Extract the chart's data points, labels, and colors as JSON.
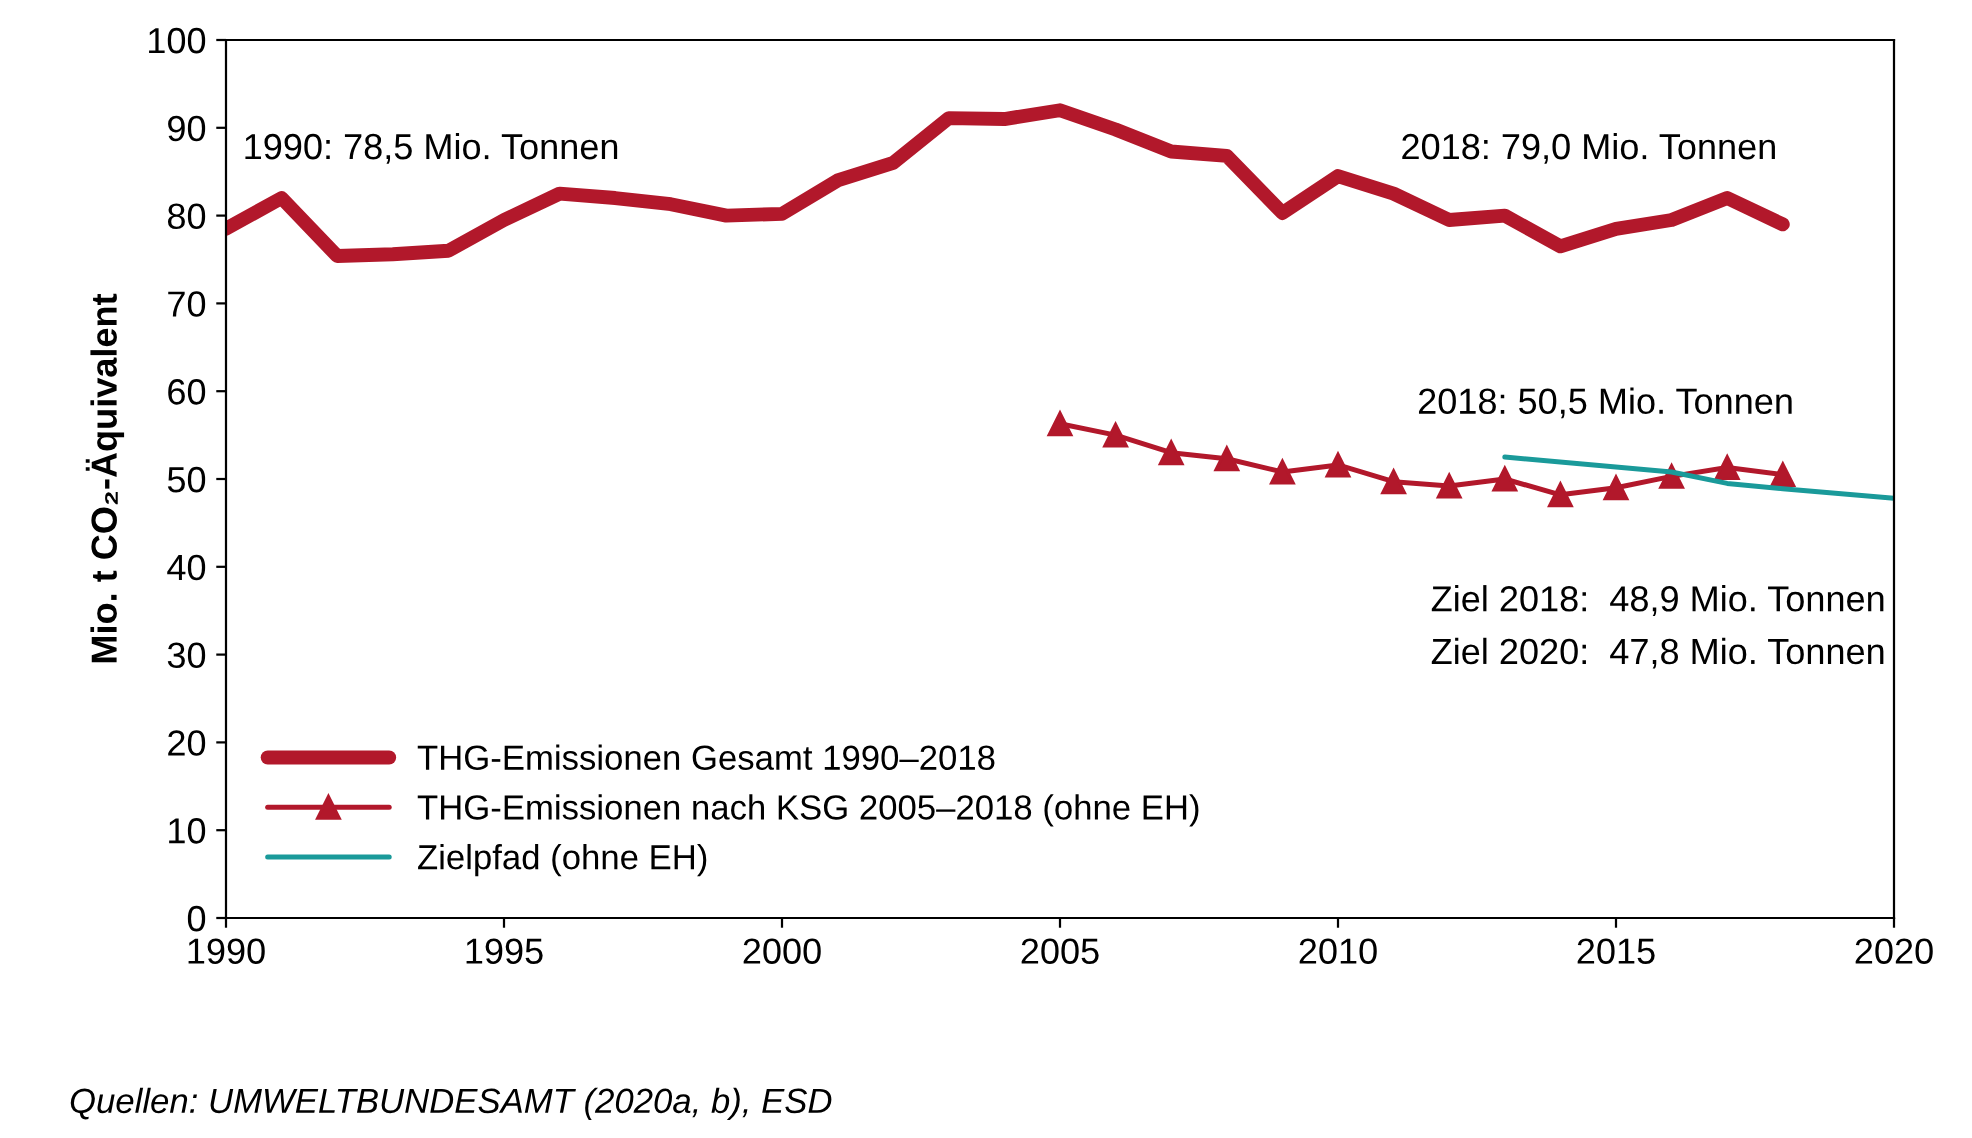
{
  "chart_data": {
    "type": "line",
    "ylabel": "Mio. t CO₂-Äquivalent",
    "xlim": [
      1990,
      2020
    ],
    "xticks": [
      1990,
      1995,
      2000,
      2005,
      2010,
      2015,
      2020
    ],
    "ylim": [
      0,
      100
    ],
    "yticks": [
      0,
      10,
      20,
      30,
      40,
      50,
      60,
      70,
      80,
      90,
      100
    ],
    "grid": false,
    "legend": "bottom left",
    "series": [
      {
        "name": "THG-Emissionen Gesamt 1990–2018",
        "color": "#b2182b",
        "marker": "none",
        "x": [
          1990,
          1991,
          1992,
          1993,
          1994,
          1995,
          1996,
          1997,
          1998,
          1999,
          2000,
          2001,
          2002,
          2003,
          2004,
          2005,
          2006,
          2007,
          2008,
          2009,
          2010,
          2011,
          2012,
          2013,
          2014,
          2015,
          2016,
          2017,
          2018
        ],
        "values": [
          78.5,
          82,
          75.4,
          75.6,
          76,
          79.5,
          82.5,
          82,
          81.3,
          80,
          80.2,
          84,
          86,
          91.1,
          91,
          92,
          89.8,
          87.3,
          86.8,
          80.3,
          84.5,
          82.5,
          79.5,
          80,
          76.5,
          78.5,
          79.5,
          82,
          79.0
        ]
      },
      {
        "name": "THG-Emissionen nach KSG 2005–2018 (ohne EH)",
        "color": "#b2182b",
        "marker": "triangle",
        "x": [
          2005,
          2006,
          2007,
          2008,
          2009,
          2010,
          2011,
          2012,
          2013,
          2014,
          2015,
          2016,
          2017,
          2018
        ],
        "values": [
          56.3,
          55,
          53,
          52.3,
          50.8,
          51.6,
          49.7,
          49.2,
          50,
          48.2,
          49,
          50.3,
          51.3,
          50.5
        ]
      },
      {
        "name": "Zielpfad (ohne EH)",
        "color": "#1a9a9a",
        "marker": "none",
        "x": [
          2013,
          2016,
          2017,
          2018,
          2020
        ],
        "values": [
          52.5,
          50.8,
          49.5,
          48.9,
          47.8
        ]
      }
    ],
    "annotations": [
      "1990: 78,5 Mio. Tonnen",
      "2018: 79,0 Mio. Tonnen",
      "2018: 50,5 Mio. Tonnen",
      "Ziel 2018:  48,9 Mio. Tonnen",
      "Ziel 2020:  47,8 Mio. Tonnen",
      "Quellen: UMWELTBUNDESAMT (2020a, b), ESD"
    ]
  }
}
